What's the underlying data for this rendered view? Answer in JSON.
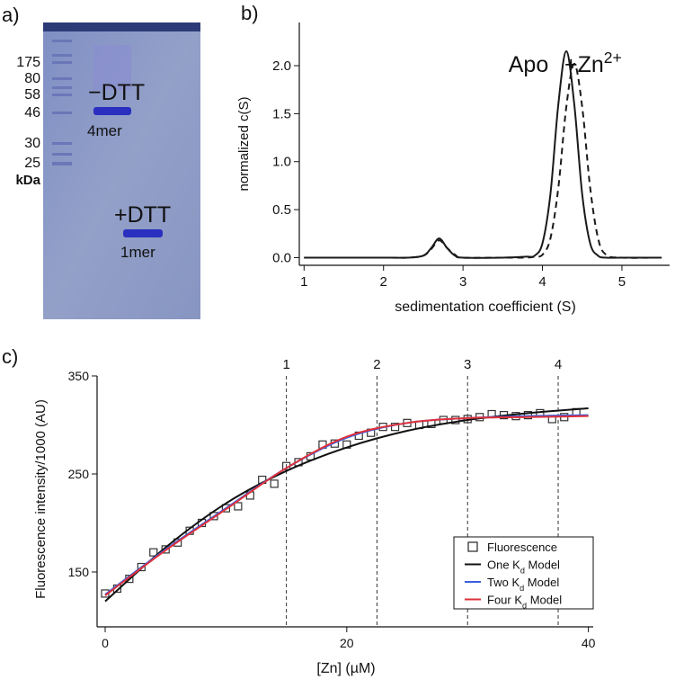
{
  "gel": {
    "panel_label": "a)",
    "markers": [
      "175",
      "80",
      "58",
      "46",
      "30",
      "25"
    ],
    "unit": "kDa",
    "annotations": [
      "−DTT",
      "4mer",
      "+DTT",
      "1mer"
    ]
  },
  "chart_data": [
    {
      "type": "line",
      "panel_label": "b)",
      "x_label": "sedimentation coefficient (S)",
      "y_label": "normalized c(S)",
      "legend": "inline",
      "x": [
        1.0,
        1.5,
        2.0,
        2.3,
        2.5,
        2.6,
        2.7,
        2.8,
        2.9,
        3.0,
        3.5,
        3.8,
        3.9,
        4.0,
        4.1,
        4.2,
        4.3,
        4.4,
        4.5,
        4.6,
        4.7,
        4.8,
        5.0,
        5.5
      ],
      "series": [
        {
          "name": "Apo",
          "color": "#1a1a1a",
          "dashed": false,
          "values": [
            0,
            0,
            0,
            0,
            0.02,
            0.1,
            0.2,
            0.1,
            0.02,
            0,
            0,
            0.01,
            0.02,
            0.15,
            0.66,
            1.6,
            2.15,
            1.6,
            0.66,
            0.15,
            0.02,
            0,
            0,
            0
          ]
        },
        {
          "name": [
            {
              "text": "+Zn"
            },
            {
              "text": "2+",
              "sup": true
            }
          ],
          "color": "#1a1a1a",
          "dashed": true,
          "values": [
            0,
            0,
            0,
            0,
            0.02,
            0.09,
            0.18,
            0.1,
            0.03,
            0,
            0,
            0,
            0.01,
            0.03,
            0.2,
            0.73,
            1.57,
            2.02,
            1.57,
            0.73,
            0.2,
            0.03,
            0,
            0
          ]
        }
      ],
      "xlim": [
        0.94,
        5.6
      ],
      "ylim": [
        -0.08,
        2.45
      ],
      "xticks": [
        1,
        2,
        3,
        4,
        5
      ],
      "yticks": [
        {
          "value": 0,
          "label": "0.0"
        },
        0.5,
        {
          "value": 1,
          "label": "1.0"
        },
        1.5,
        {
          "value": 2,
          "label": "2.0"
        }
      ]
    },
    {
      "type": "line",
      "panel_label": "c)",
      "x_label": "[Zn] (µM)",
      "y_label": "Fluorescence intensity/1000 (AU)",
      "legend": "lower right",
      "vlines": [
        {
          "x": 15,
          "label": "1"
        },
        {
          "x": 22.5,
          "label": "2"
        },
        {
          "x": 30,
          "label": "3"
        },
        {
          "x": 37.5,
          "label": "4"
        }
      ],
      "series": [
        {
          "name": "Fluorescence",
          "color": "#333333",
          "marker": "square",
          "x": [
            0,
            1,
            2,
            3,
            4,
            5,
            6,
            7,
            8,
            9,
            10,
            11,
            12,
            13,
            14,
            15,
            16,
            17,
            18,
            19,
            20,
            21,
            22,
            23,
            24,
            25,
            26,
            27,
            28,
            29,
            30,
            31,
            32,
            33,
            34,
            35,
            36,
            37,
            38,
            39
          ],
          "values": [
            128,
            133,
            143,
            155,
            170,
            173,
            180,
            192,
            200,
            207,
            215,
            217,
            228,
            244,
            240,
            258,
            262,
            268,
            280,
            281,
            280,
            289,
            292,
            298,
            298,
            302,
            300,
            301,
            305,
            305,
            306,
            308,
            311,
            310,
            309,
            310,
            312,
            306,
            308,
            313
          ]
        },
        {
          "name": [
            {
              "text": "One K"
            },
            {
              "text": "d",
              "sub": true
            },
            {
              "text": " Model"
            }
          ],
          "color": "#111111",
          "x": [
            0,
            5,
            10,
            15,
            20,
            25,
            30,
            35,
            40
          ],
          "values": [
            120,
            175,
            220,
            253,
            277,
            294,
            305,
            312,
            317
          ]
        },
        {
          "name": [
            {
              "text": "Two K"
            },
            {
              "text": "d",
              "sub": true
            },
            {
              "text": " Model"
            }
          ],
          "color": "#3a5fe0",
          "x": [
            0,
            5,
            10,
            15,
            20,
            25,
            30,
            35,
            40
          ],
          "values": [
            127,
            173,
            215,
            256,
            287,
            302,
            307,
            309,
            310
          ]
        },
        {
          "name": [
            {
              "text": "Four K"
            },
            {
              "text": "d",
              "sub": true
            },
            {
              "text": " Model"
            }
          ],
          "color": "#e0303a",
          "x": [
            0,
            5,
            10,
            15,
            20,
            25,
            30,
            35,
            40
          ],
          "values": [
            126,
            172,
            214,
            256,
            288,
            302,
            307,
            308,
            309
          ]
        }
      ],
      "xlim": [
        -0.67,
        40.4
      ],
      "ylim": [
        94,
        350
      ],
      "xticks": [
        0,
        20,
        40
      ],
      "yticks": [
        150,
        250,
        350
      ]
    }
  ]
}
